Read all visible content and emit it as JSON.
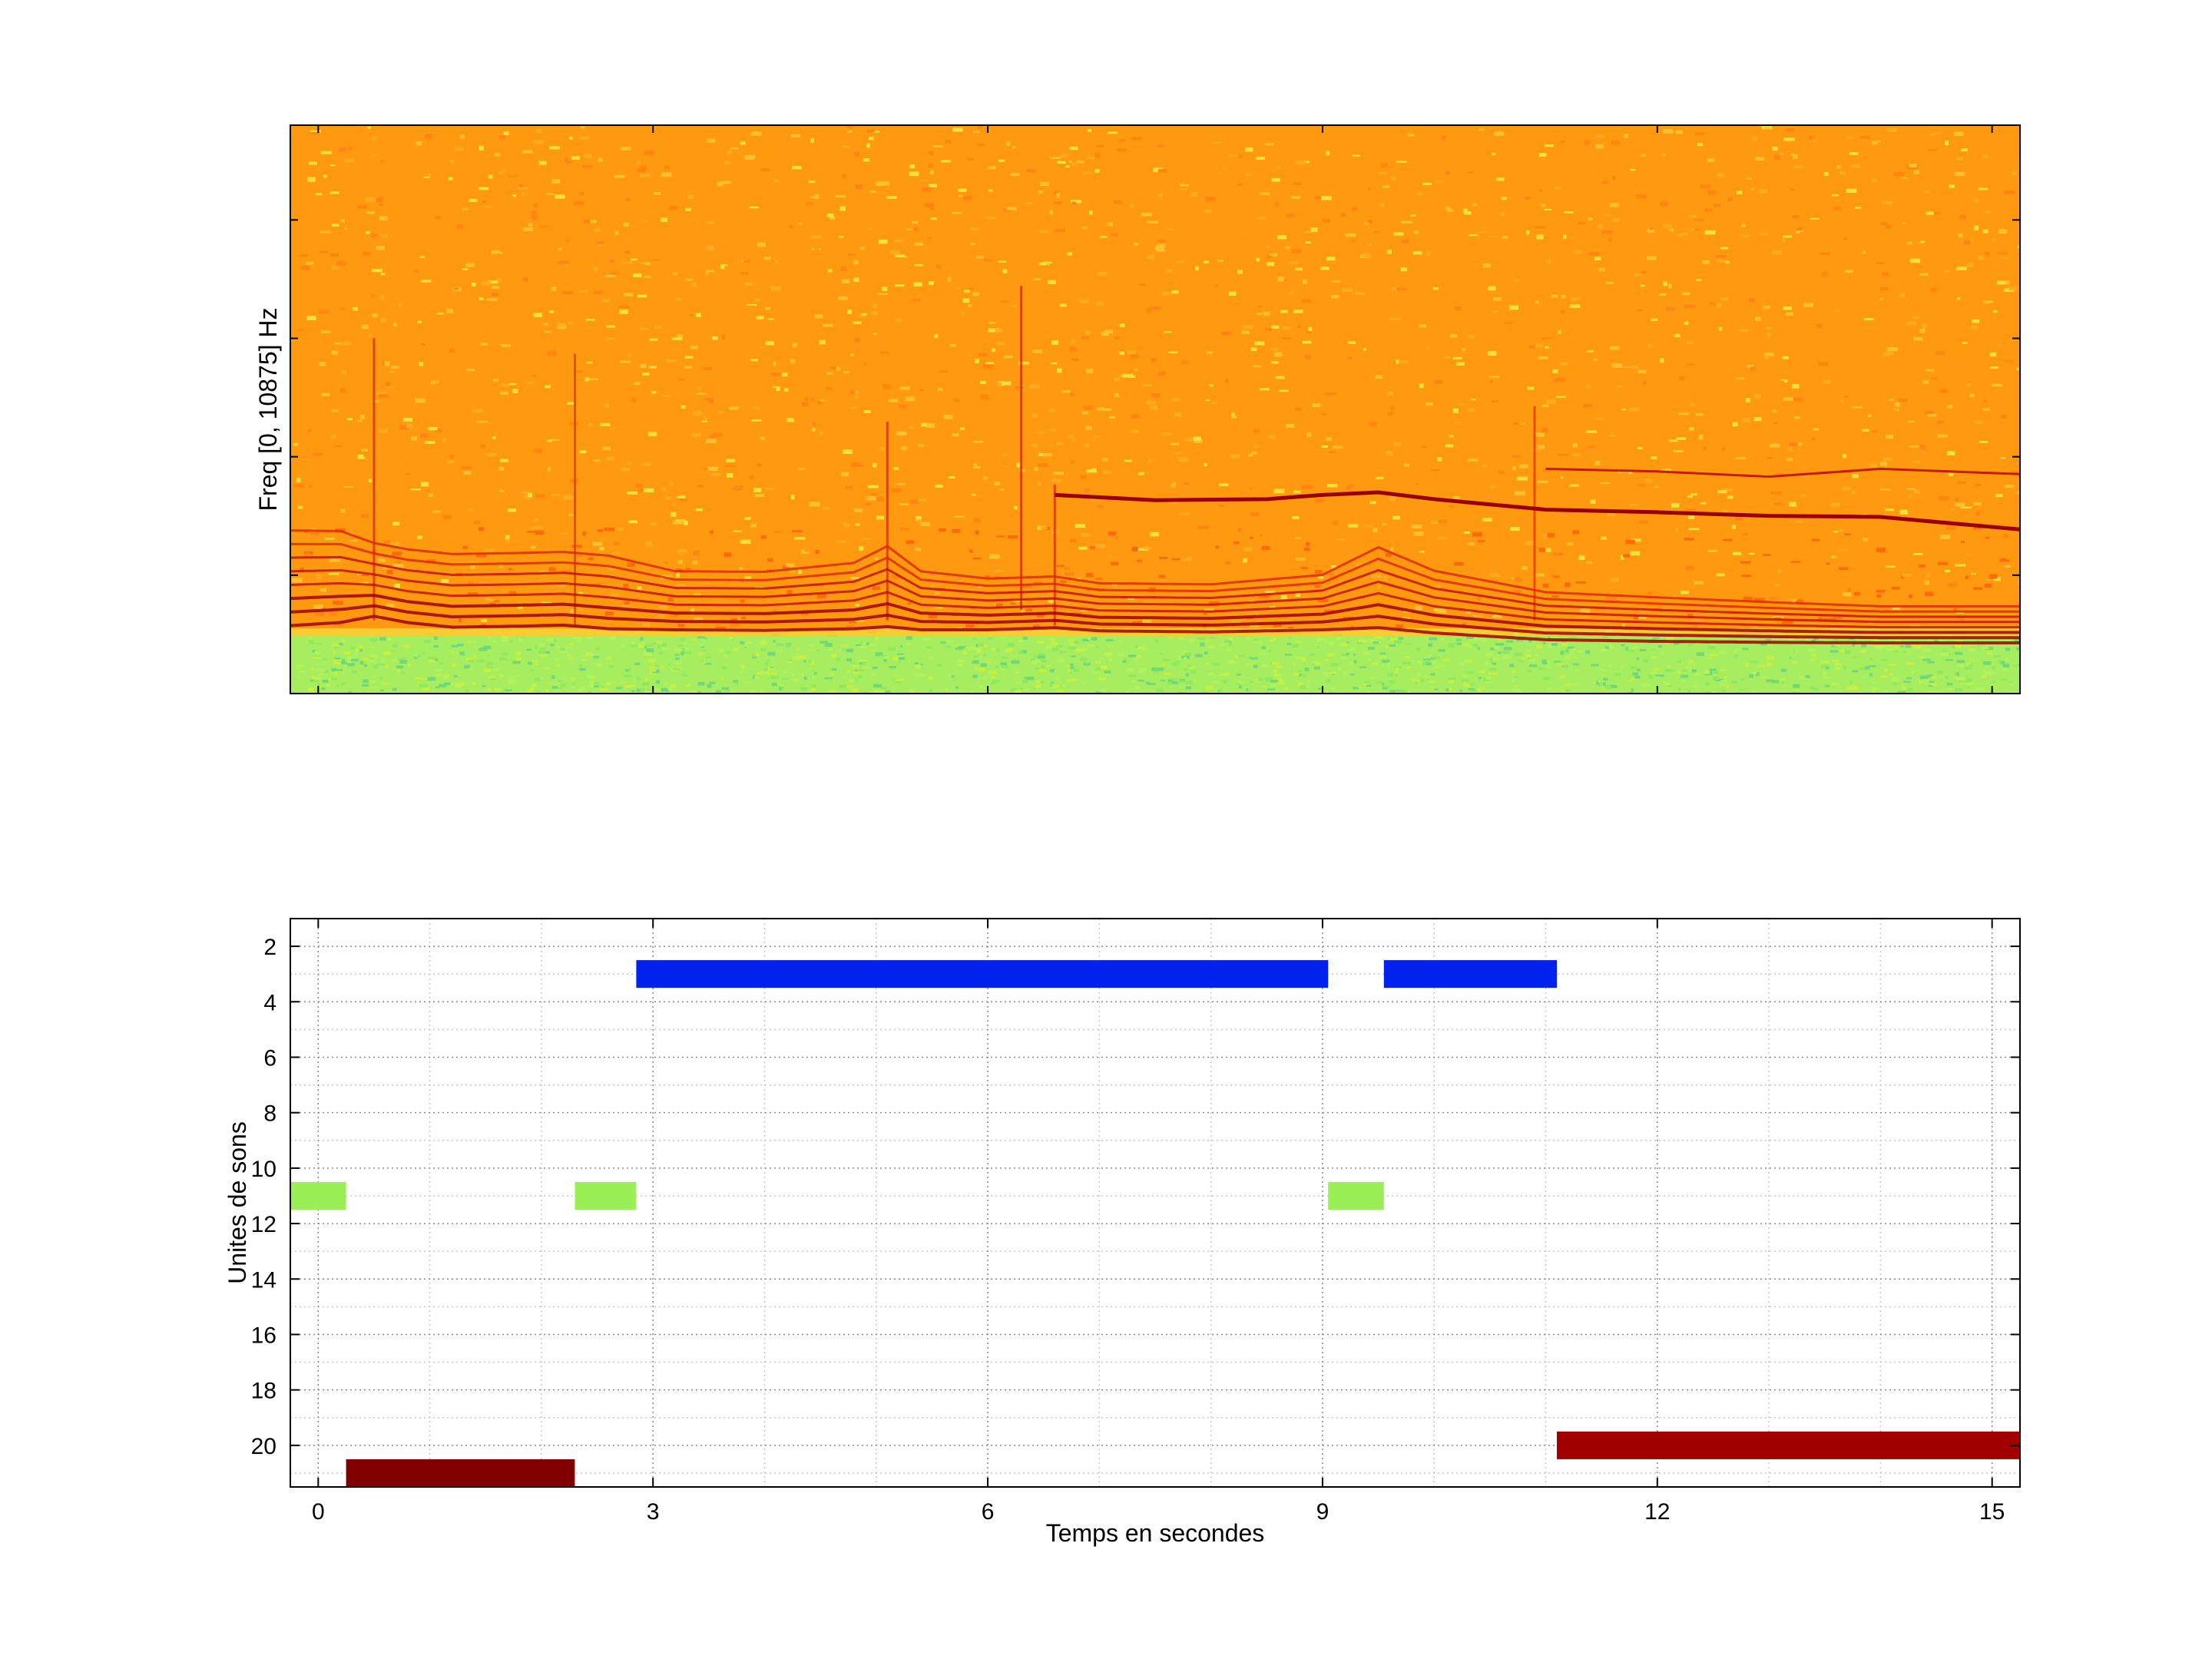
{
  "chart_data": [
    {
      "type": "heatmap",
      "ylabel": "Freq [0, 10875] Hz",
      "colormap": [
        "#2fb8c8",
        "#9ff070",
        "#f5f02a",
        "#ffb000",
        "#ff8a00",
        "#f22e00",
        "#b00000",
        "#7a0000"
      ],
      "xlim": [
        -0.25,
        15.25
      ],
      "ylim": [
        0,
        10875
      ],
      "noise_floor_colors": [
        "#ff9a10",
        "#ffaa20",
        "#ffc030",
        "#ff8410",
        "#f5e040"
      ],
      "low_band_colors": [
        "#b2f25a",
        "#8fe85e",
        "#6fd87a",
        "#c8f040"
      ],
      "harmonics": [
        {
          "x": [
            -0.25,
            0.2,
            0.5,
            0.8,
            1.2,
            1.8,
            2.2,
            2.6,
            3.2,
            4.0,
            4.8,
            5.1,
            5.4,
            6.0,
            6.6,
            7.0,
            8.0,
            9.0,
            9.5,
            10.0,
            11.0,
            12.0,
            13.0,
            14.0,
            15.25
          ],
          "f": [
            1500,
            1560,
            1680,
            1560,
            1470,
            1490,
            1510,
            1440,
            1420,
            1410,
            1440,
            1480,
            1420,
            1420,
            1460,
            1400,
            1380,
            1420,
            1460,
            1360,
            1230,
            1200,
            1180,
            1170,
            1170
          ],
          "n": 8,
          "spacing": [
            260,
            250,
            200,
            200,
            200,
            200,
            200,
            200,
            160,
            160,
            180,
            220,
            160,
            140,
            140,
            130,
            130,
            150,
            220,
            170,
            130,
            120,
            110,
            100,
            100
          ]
        }
      ],
      "contours": [
        {
          "x": [
            6.6,
            7.5,
            8.5,
            9.0,
            9.5,
            10.0,
            10.5,
            11.0,
            12.0,
            13.0,
            14.0,
            15.25
          ],
          "f": [
            3800,
            3700,
            3720,
            3800,
            3850,
            3720,
            3620,
            3520,
            3470,
            3400,
            3380,
            3140
          ],
          "w": 5,
          "color": "#9a0000"
        },
        {
          "x": [
            11.0,
            12.0,
            13.0,
            14.0,
            15.25
          ],
          "f": [
            4300,
            4250,
            4150,
            4300,
            4200
          ],
          "w": 3,
          "color": "#c81a00"
        }
      ],
      "vertical_streaks": [
        {
          "x": 0.5,
          "f0": 1400,
          "f1": 6800,
          "color": "#d42000"
        },
        {
          "x": 2.3,
          "f0": 1300,
          "f1": 6500,
          "color": "#e02a00"
        },
        {
          "x": 5.1,
          "f0": 1400,
          "f1": 5200,
          "color": "#d42000"
        },
        {
          "x": 6.3,
          "f0": 1600,
          "f1": 7800,
          "color": "#c81a00"
        },
        {
          "x": 6.6,
          "f0": 1300,
          "f1": 4000,
          "color": "#d42000"
        },
        {
          "x": 10.9,
          "f0": 1400,
          "f1": 5500,
          "color": "#e02a00"
        }
      ]
    },
    {
      "type": "bar",
      "orientation": "horizontal-segments",
      "xlabel": "Temps en secondes",
      "ylabel": "Unites de sons",
      "xlim": [
        -0.25,
        15.25
      ],
      "ylim": [
        1,
        21.5
      ],
      "xticks": [
        0,
        3,
        6,
        9,
        12,
        15
      ],
      "xtick_labels": [
        "0",
        "3",
        "6",
        "9",
        "12",
        "15"
      ],
      "yticks": [
        2,
        4,
        6,
        8,
        10,
        12,
        14,
        16,
        18,
        20
      ],
      "ytick_labels": [
        "2",
        "4",
        "6",
        "8",
        "10",
        "12",
        "14",
        "16",
        "18",
        "20"
      ],
      "grid": true,
      "y_reversed": true,
      "segments": [
        {
          "unit": 3,
          "start": 2.85,
          "end": 9.05,
          "color": "#0022ee"
        },
        {
          "unit": 3,
          "start": 9.55,
          "end": 11.1,
          "color": "#0022ee"
        },
        {
          "unit": 11,
          "start": -0.25,
          "end": 0.25,
          "color": "#99ef55"
        },
        {
          "unit": 11,
          "start": 2.3,
          "end": 2.85,
          "color": "#99ef55"
        },
        {
          "unit": 11,
          "start": 9.05,
          "end": 9.55,
          "color": "#99ef55"
        },
        {
          "unit": 20,
          "start": 11.1,
          "end": 15.25,
          "color": "#a10000"
        },
        {
          "unit": 21,
          "start": 0.25,
          "end": 2.3,
          "color": "#800000"
        }
      ]
    }
  ]
}
